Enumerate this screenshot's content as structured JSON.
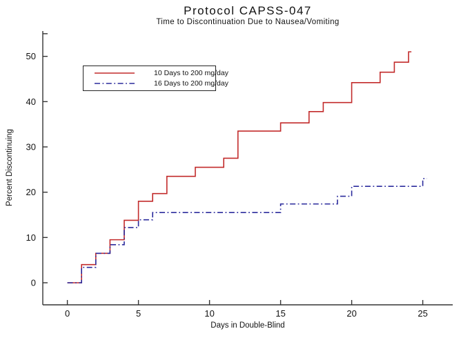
{
  "chart_data": {
    "type": "line",
    "step": true,
    "title": "Protocol CAPSS-047",
    "subtitle": "Time to Discontinuation Due to Nausea/Vomiting",
    "xlabel": "Days in Double-Blind",
    "ylabel": "Percent Discontinuing",
    "xlim": [
      0,
      27
    ],
    "ylim": [
      0,
      55
    ],
    "xticks": [
      0,
      5,
      10,
      15,
      20,
      25
    ],
    "yticks": [
      0,
      10,
      20,
      30,
      40,
      50
    ],
    "y_end_tick": 55,
    "grid": false,
    "legend_position": "upper-left-inside",
    "axis_color": "#333333",
    "text_color": "#111111",
    "series": [
      {
        "name": "10 Days to 200 mg/day",
        "color": "#c22a2a",
        "style": "solid",
        "end_day": 24.2,
        "points": [
          [
            0,
            0
          ],
          [
            1,
            4
          ],
          [
            2,
            6.5
          ],
          [
            3,
            9.5
          ],
          [
            4,
            13.8
          ],
          [
            5,
            18
          ],
          [
            6,
            19.7
          ],
          [
            7,
            23.5
          ],
          [
            9,
            25.5
          ],
          [
            11,
            27.5
          ],
          [
            12,
            33.5
          ],
          [
            15,
            35.3
          ],
          [
            17,
            37.8
          ],
          [
            18,
            39.8
          ],
          [
            20,
            44.2
          ],
          [
            22,
            46.5
          ],
          [
            23,
            48.7
          ],
          [
            24,
            51
          ]
        ]
      },
      {
        "name": "16 Days to 200 mg/day",
        "color": "#2a2a9c",
        "style": "dash-dot",
        "end_day": 25.3,
        "points": [
          [
            0,
            0
          ],
          [
            1,
            3.4
          ],
          [
            2,
            6.5
          ],
          [
            3,
            8.4
          ],
          [
            4,
            12.2
          ],
          [
            5,
            13.9
          ],
          [
            6,
            15.5
          ],
          [
            15,
            17.4
          ],
          [
            19,
            19.1
          ],
          [
            20,
            21.3
          ],
          [
            25,
            23
          ]
        ]
      }
    ]
  }
}
